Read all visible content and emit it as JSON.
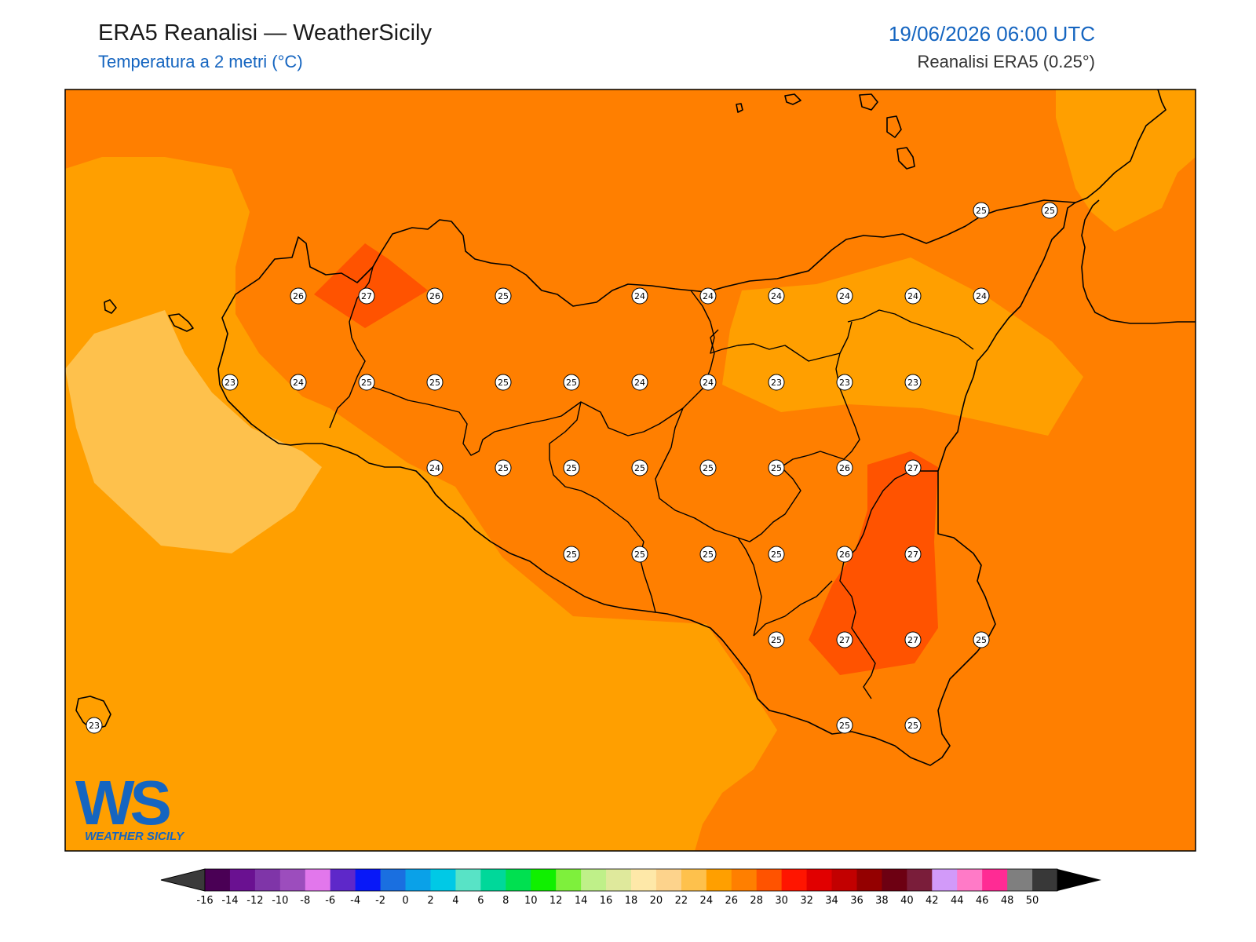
{
  "header": {
    "title": "ERA5 Reanalisi — WeatherSicily",
    "subtitle": "Temperatura a 2 metri (°C)",
    "datetime": "19/06/2026 06:00 UTC",
    "source": "Reanalisi ERA5 (0.25°)"
  },
  "logo": {
    "text": "WEATHER SICILY",
    "letters": "WS"
  },
  "colorbar": {
    "ticks": [
      "-16",
      "-14",
      "-12",
      "-10",
      "-8",
      "-6",
      "-4",
      "-2",
      "0",
      "2",
      "4",
      "6",
      "8",
      "10",
      "12",
      "14",
      "16",
      "18",
      "20",
      "22",
      "24",
      "26",
      "28",
      "30",
      "32",
      "34",
      "36",
      "38",
      "40",
      "42",
      "44",
      "46",
      "48",
      "50"
    ],
    "colors": [
      "#4a0055",
      "#6a1191",
      "#7f35a8",
      "#9c4dbd",
      "#e277ec",
      "#5e28c9",
      "#0818f8",
      "#1a6fe0",
      "#0aa1e8",
      "#00c9e6",
      "#58e3c6",
      "#00d89a",
      "#00e050",
      "#10f000",
      "#7ef03c",
      "#bff089",
      "#dfe99c",
      "#fee8a8",
      "#fdd38c",
      "#fec14c",
      "#ff9f00",
      "#ff7f00",
      "#ff5300",
      "#ff1500",
      "#e10000",
      "#c20000",
      "#940000",
      "#6d0012",
      "#7a1d3a",
      "#d29af9",
      "#ff7ac7",
      "#ff2b94",
      "#7f7f7f",
      "#383838"
    ]
  },
  "stations": [
    {
      "v": "25"
    },
    {
      "v": "25"
    },
    {
      "v": "26"
    },
    {
      "v": "27"
    },
    {
      "v": "26"
    },
    {
      "v": "25"
    },
    {
      "v": "24"
    },
    {
      "v": "24"
    },
    {
      "v": "24"
    },
    {
      "v": "24"
    },
    {
      "v": "24"
    },
    {
      "v": "24"
    },
    {
      "v": "23"
    },
    {
      "v": "24"
    },
    {
      "v": "25"
    },
    {
      "v": "25"
    },
    {
      "v": "25"
    },
    {
      "v": "25"
    },
    {
      "v": "24"
    },
    {
      "v": "24"
    },
    {
      "v": "23"
    },
    {
      "v": "23"
    },
    {
      "v": "23"
    },
    {
      "v": "24"
    },
    {
      "v": "25"
    },
    {
      "v": "25"
    },
    {
      "v": "25"
    },
    {
      "v": "25"
    },
    {
      "v": "25"
    },
    {
      "v": "26"
    },
    {
      "v": "27"
    },
    {
      "v": "25"
    },
    {
      "v": "25"
    },
    {
      "v": "25"
    },
    {
      "v": "25"
    },
    {
      "v": "26"
    },
    {
      "v": "27"
    },
    {
      "v": "25"
    },
    {
      "v": "27"
    },
    {
      "v": "27"
    },
    {
      "v": "25"
    },
    {
      "v": "23"
    },
    {
      "v": "25"
    },
    {
      "v": "25"
    }
  ]
}
